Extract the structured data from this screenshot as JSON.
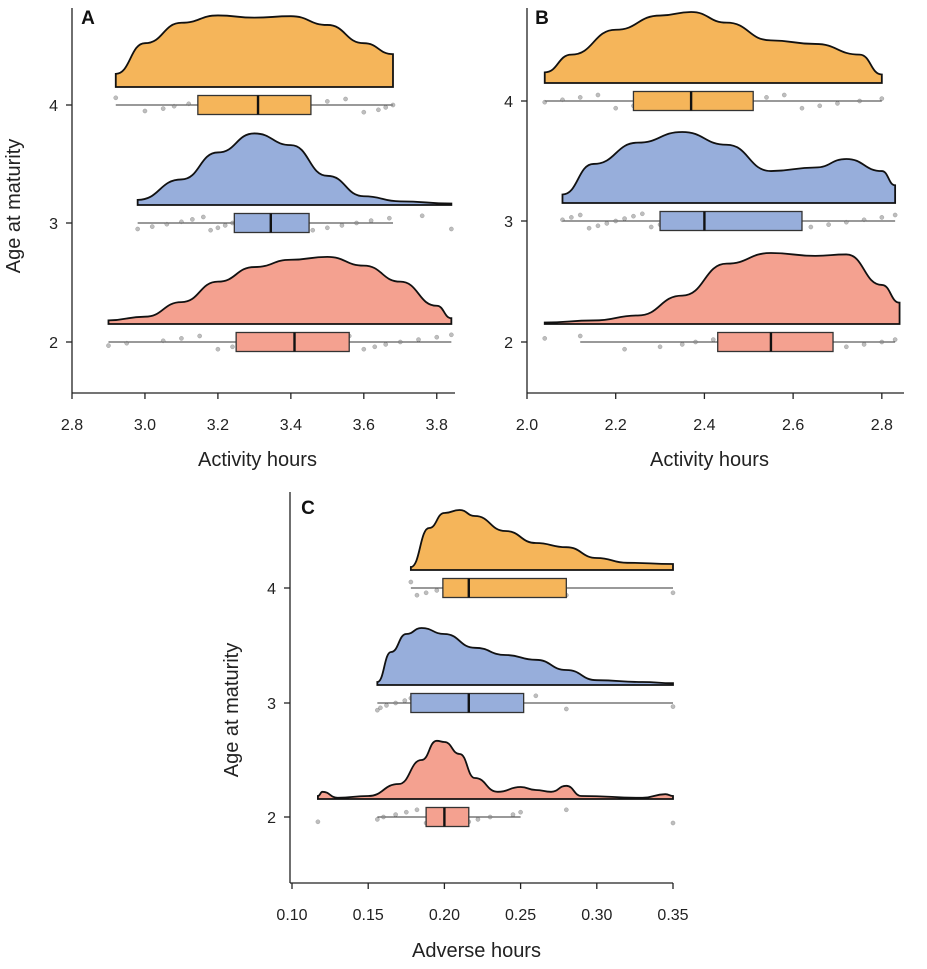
{
  "chart_data": [
    {
      "panel": "A",
      "type": "raincloud",
      "xlabel": "Activity hours",
      "ylabel": "Age at maturity",
      "xlim": [
        2.8,
        3.85
      ],
      "xticks": [
        "2.8",
        "3.0",
        "3.2",
        "3.4",
        "3.6",
        "3.8"
      ],
      "categories": [
        "2",
        "3",
        "4"
      ],
      "groups": [
        {
          "category": "4",
          "color": "#F5B55A",
          "min": 2.92,
          "q1": 3.145,
          "median": 3.31,
          "q3": 3.455,
          "max": 3.68,
          "density": [
            [
              2.92,
              0.18
            ],
            [
              3.0,
              0.6
            ],
            [
              3.1,
              0.88
            ],
            [
              3.2,
              0.98
            ],
            [
              3.3,
              0.95
            ],
            [
              3.4,
              0.97
            ],
            [
              3.5,
              0.85
            ],
            [
              3.6,
              0.6
            ],
            [
              3.68,
              0.45
            ]
          ],
          "points": [
            2.92,
            3.0,
            3.05,
            3.08,
            3.12,
            3.15,
            3.17,
            3.2,
            3.22,
            3.25,
            3.27,
            3.3,
            3.32,
            3.35,
            3.38,
            3.4,
            3.42,
            3.45,
            3.5,
            3.55,
            3.6,
            3.64,
            3.66,
            3.68
          ]
        },
        {
          "category": "3",
          "color": "#97AEDB",
          "min": 2.98,
          "q1": 3.245,
          "median": 3.345,
          "q3": 3.45,
          "max": 3.68,
          "density": [
            [
              2.98,
              0.07
            ],
            [
              3.1,
              0.35
            ],
            [
              3.2,
              0.72
            ],
            [
              3.3,
              0.98
            ],
            [
              3.4,
              0.82
            ],
            [
              3.5,
              0.4
            ],
            [
              3.6,
              0.12
            ],
            [
              3.7,
              0.05
            ],
            [
              3.84,
              0.02
            ]
          ],
          "points": [
            2.98,
            3.02,
            3.06,
            3.1,
            3.13,
            3.16,
            3.18,
            3.2,
            3.22,
            3.24,
            3.26,
            3.28,
            3.3,
            3.32,
            3.34,
            3.36,
            3.38,
            3.4,
            3.43,
            3.46,
            3.5,
            3.54,
            3.58,
            3.62,
            3.67,
            3.76,
            3.84
          ]
        },
        {
          "category": "2",
          "color": "#F4A190",
          "min": 2.9,
          "q1": 3.25,
          "median": 3.41,
          "q3": 3.56,
          "max": 3.84,
          "density": [
            [
              2.9,
              0.05
            ],
            [
              3.0,
              0.1
            ],
            [
              3.1,
              0.3
            ],
            [
              3.2,
              0.58
            ],
            [
              3.3,
              0.78
            ],
            [
              3.4,
              0.88
            ],
            [
              3.5,
              0.92
            ],
            [
              3.6,
              0.8
            ],
            [
              3.7,
              0.58
            ],
            [
              3.8,
              0.25
            ],
            [
              3.84,
              0.08
            ]
          ],
          "points": [
            2.9,
            2.95,
            3.05,
            3.1,
            3.15,
            3.2,
            3.24,
            3.28,
            3.3,
            3.33,
            3.36,
            3.4,
            3.42,
            3.45,
            3.48,
            3.5,
            3.53,
            3.56,
            3.6,
            3.63,
            3.66,
            3.7,
            3.75,
            3.8,
            3.84
          ]
        }
      ]
    },
    {
      "panel": "B",
      "type": "raincloud",
      "xlabel": "Activity hours",
      "ylabel": "",
      "xlim": [
        2.0,
        2.85
      ],
      "xticks": [
        "2.0",
        "2.2",
        "2.4",
        "2.6",
        "2.8"
      ],
      "categories": [
        "2",
        "3",
        "4"
      ],
      "groups": [
        {
          "category": "4",
          "color": "#F5B55A",
          "min": 2.04,
          "q1": 2.24,
          "median": 2.37,
          "q3": 2.51,
          "max": 2.8,
          "density": [
            [
              2.04,
              0.15
            ],
            [
              2.1,
              0.4
            ],
            [
              2.2,
              0.75
            ],
            [
              2.3,
              0.95
            ],
            [
              2.37,
              1.0
            ],
            [
              2.45,
              0.85
            ],
            [
              2.55,
              0.6
            ],
            [
              2.65,
              0.55
            ],
            [
              2.75,
              0.4
            ],
            [
              2.8,
              0.12
            ]
          ],
          "points": [
            2.04,
            2.08,
            2.12,
            2.16,
            2.2,
            2.24,
            2.27,
            2.3,
            2.33,
            2.36,
            2.38,
            2.41,
            2.44,
            2.47,
            2.5,
            2.54,
            2.58,
            2.62,
            2.66,
            2.7,
            2.75,
            2.8
          ]
        },
        {
          "category": "3",
          "color": "#97AEDB",
          "min": 2.08,
          "q1": 2.3,
          "median": 2.4,
          "q3": 2.62,
          "max": 2.83,
          "density": [
            [
              2.08,
              0.12
            ],
            [
              2.15,
              0.55
            ],
            [
              2.25,
              0.85
            ],
            [
              2.35,
              1.0
            ],
            [
              2.45,
              0.82
            ],
            [
              2.55,
              0.45
            ],
            [
              2.65,
              0.5
            ],
            [
              2.72,
              0.62
            ],
            [
              2.8,
              0.45
            ],
            [
              2.83,
              0.25
            ]
          ],
          "points": [
            2.08,
            2.1,
            2.12,
            2.14,
            2.16,
            2.18,
            2.2,
            2.22,
            2.24,
            2.26,
            2.28,
            2.3,
            2.32,
            2.34,
            2.36,
            2.38,
            2.4,
            2.42,
            2.45,
            2.48,
            2.52,
            2.56,
            2.6,
            2.64,
            2.68,
            2.72,
            2.76,
            2.8,
            2.83
          ]
        },
        {
          "category": "2",
          "color": "#F4A190",
          "min": 2.12,
          "q1": 2.43,
          "median": 2.55,
          "q3": 2.69,
          "max": 2.83,
          "density": [
            [
              2.04,
              0.02
            ],
            [
              2.15,
              0.05
            ],
            [
              2.25,
              0.12
            ],
            [
              2.35,
              0.4
            ],
            [
              2.45,
              0.85
            ],
            [
              2.55,
              1.0
            ],
            [
              2.65,
              0.96
            ],
            [
              2.72,
              0.98
            ],
            [
              2.8,
              0.55
            ],
            [
              2.84,
              0.3
            ]
          ],
          "points": [
            2.04,
            2.12,
            2.22,
            2.3,
            2.35,
            2.38,
            2.42,
            2.45,
            2.48,
            2.51,
            2.54,
            2.56,
            2.59,
            2.62,
            2.65,
            2.68,
            2.72,
            2.76,
            2.8,
            2.83
          ]
        }
      ]
    },
    {
      "panel": "C",
      "type": "raincloud",
      "xlabel": "Adverse hours",
      "ylabel": "Age at maturity",
      "xlim": [
        0.1,
        0.35
      ],
      "xticks": [
        "0.10",
        "0.15",
        "0.20",
        "0.25",
        "0.30",
        "0.35"
      ],
      "categories": [
        "2",
        "3",
        "4"
      ],
      "groups": [
        {
          "category": "4",
          "color": "#F5B55A",
          "min": 0.178,
          "q1": 0.199,
          "median": 0.216,
          "q3": 0.28,
          "max": 0.35,
          "density": [
            [
              0.178,
              0.05
            ],
            [
              0.19,
              0.7
            ],
            [
              0.2,
              0.95
            ],
            [
              0.21,
              1.0
            ],
            [
              0.22,
              0.9
            ],
            [
              0.24,
              0.65
            ],
            [
              0.26,
              0.45
            ],
            [
              0.28,
              0.38
            ],
            [
              0.3,
              0.2
            ],
            [
              0.32,
              0.12
            ],
            [
              0.35,
              0.1
            ]
          ],
          "points": [
            0.178,
            0.182,
            0.188,
            0.195,
            0.2,
            0.205,
            0.21,
            0.216,
            0.222,
            0.23,
            0.24,
            0.25,
            0.26,
            0.27,
            0.28,
            0.35
          ]
        },
        {
          "category": "3",
          "color": "#97AEDB",
          "min": 0.156,
          "q1": 0.178,
          "median": 0.216,
          "q3": 0.252,
          "max": 0.35,
          "density": [
            [
              0.156,
              0.05
            ],
            [
              0.165,
              0.55
            ],
            [
              0.175,
              0.85
            ],
            [
              0.185,
              0.95
            ],
            [
              0.2,
              0.85
            ],
            [
              0.22,
              0.62
            ],
            [
              0.24,
              0.5
            ],
            [
              0.26,
              0.42
            ],
            [
              0.28,
              0.25
            ],
            [
              0.3,
              0.08
            ],
            [
              0.33,
              0.05
            ],
            [
              0.35,
              0.03
            ]
          ],
          "points": [
            0.156,
            0.158,
            0.162,
            0.168,
            0.174,
            0.178,
            0.182,
            0.186,
            0.19,
            0.195,
            0.2,
            0.205,
            0.21,
            0.215,
            0.22,
            0.225,
            0.23,
            0.24,
            0.25,
            0.26,
            0.28,
            0.35
          ]
        },
        {
          "category": "2",
          "color": "#F4A190",
          "min": 0.156,
          "q1": 0.188,
          "median": 0.2,
          "q3": 0.216,
          "max": 0.25,
          "density": [
            [
              0.117,
              0.05
            ],
            [
              0.12,
              0.12
            ],
            [
              0.13,
              0.02
            ],
            [
              0.15,
              0.05
            ],
            [
              0.17,
              0.25
            ],
            [
              0.185,
              0.65
            ],
            [
              0.195,
              0.97
            ],
            [
              0.2,
              0.95
            ],
            [
              0.21,
              0.75
            ],
            [
              0.22,
              0.35
            ],
            [
              0.235,
              0.12
            ],
            [
              0.25,
              0.2
            ],
            [
              0.26,
              0.15
            ],
            [
              0.27,
              0.12
            ],
            [
              0.28,
              0.22
            ],
            [
              0.29,
              0.05
            ],
            [
              0.33,
              0.02
            ],
            [
              0.345,
              0.08
            ],
            [
              0.35,
              0.05
            ]
          ],
          "points": [
            0.117,
            0.156,
            0.16,
            0.168,
            0.175,
            0.182,
            0.188,
            0.192,
            0.196,
            0.2,
            0.204,
            0.208,
            0.212,
            0.216,
            0.222,
            0.23,
            0.245,
            0.25,
            0.28,
            0.35
          ]
        }
      ]
    }
  ]
}
